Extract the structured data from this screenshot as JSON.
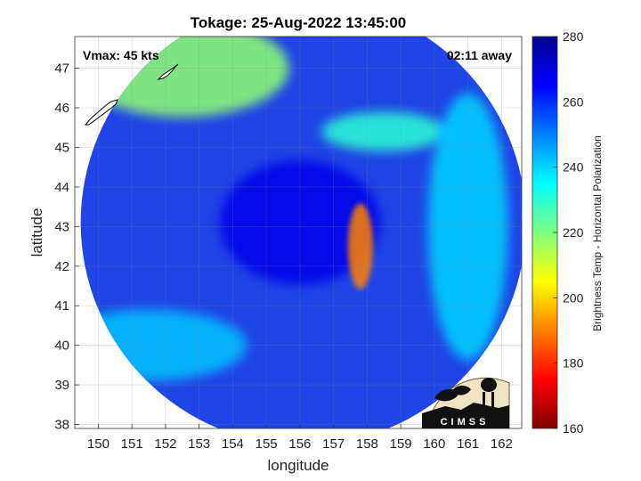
{
  "chart_data": {
    "type": "heatmap",
    "title": "Tokage: 25-Aug-2022 13:45:00",
    "xlabel": "longitude",
    "ylabel": "latitude",
    "xlim": [
      149.3,
      162.6
    ],
    "ylim": [
      37.9,
      47.8
    ],
    "x_ticks": [
      150,
      151,
      152,
      153,
      154,
      155,
      156,
      157,
      158,
      159,
      160,
      161,
      162
    ],
    "y_ticks": [
      38,
      39,
      40,
      41,
      42,
      43,
      44,
      45,
      46,
      47
    ],
    "grid": true,
    "annotations": {
      "vmax": "Vmax: 45 kts",
      "time_offset": "02:11 away"
    },
    "colorbar": {
      "label": "Brightness Temp - Horizontal Polarization",
      "range": [
        160,
        280
      ],
      "ticks": [
        160,
        180,
        200,
        220,
        240,
        260,
        280
      ],
      "colormap": "jet",
      "colors": [
        "#7f0000",
        "#ff0000",
        "#ff8000",
        "#ffff00",
        "#80ff80",
        "#00ffff",
        "#0080ff",
        "#0000ff",
        "#00008f"
      ]
    },
    "storm_center": {
      "lon": 156.1,
      "lat": 43.1
    },
    "field_features": [
      {
        "name": "background",
        "tb": 258
      },
      {
        "name": "eye-core",
        "lon": 156.0,
        "lat": 43.1,
        "tb": 268
      },
      {
        "name": "northwest-warm-sector",
        "lon": 152.5,
        "lat": 47.0,
        "tb": 218
      },
      {
        "name": "eastern-convective-band",
        "lon": 157.8,
        "lat": 42.5,
        "tb": 190
      },
      {
        "name": "northern-cloud-band",
        "lon": 158.5,
        "lat": 45.4,
        "tb": 230
      },
      {
        "name": "eastern-swath",
        "lon": 161.0,
        "lat": 43.0,
        "tb": 240
      },
      {
        "name": "southwest-band",
        "lon": 151.5,
        "lat": 40.0,
        "tb": 242
      }
    ],
    "land_outlines": [
      "island-small",
      "island-long"
    ]
  },
  "logo": {
    "text": "CIMSS"
  }
}
